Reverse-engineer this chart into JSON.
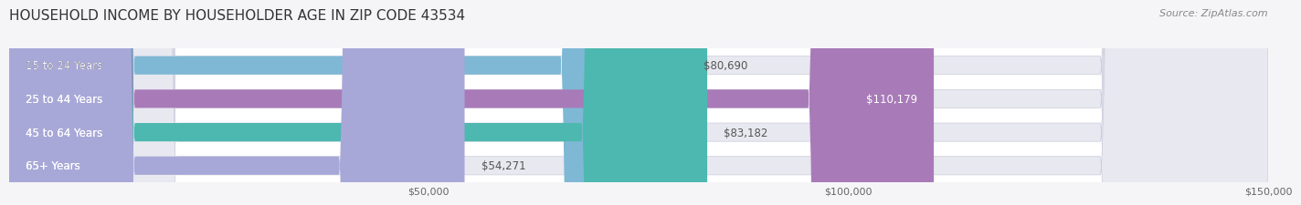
{
  "title": "HOUSEHOLD INCOME BY HOUSEHOLDER AGE IN ZIP CODE 43534",
  "source": "Source: ZipAtlas.com",
  "categories": [
    "15 to 24 Years",
    "25 to 44 Years",
    "45 to 64 Years",
    "65+ Years"
  ],
  "values": [
    80690,
    110179,
    83182,
    54271
  ],
  "bar_colors": [
    "#7eb8d4",
    "#a87bb8",
    "#4db8b0",
    "#a8a8d8"
  ],
  "bar_bg_color": "#e8e8f0",
  "xlim": [
    0,
    150000
  ],
  "xticks": [
    50000,
    100000,
    150000
  ],
  "xtick_labels": [
    "$50,000",
    "$100,000",
    "$150,000"
  ],
  "title_fontsize": 11,
  "source_fontsize": 8,
  "label_fontsize": 8.5,
  "value_fontsize": 8.5,
  "background_color": "#f5f5f8",
  "plot_bg_color": "#ffffff"
}
